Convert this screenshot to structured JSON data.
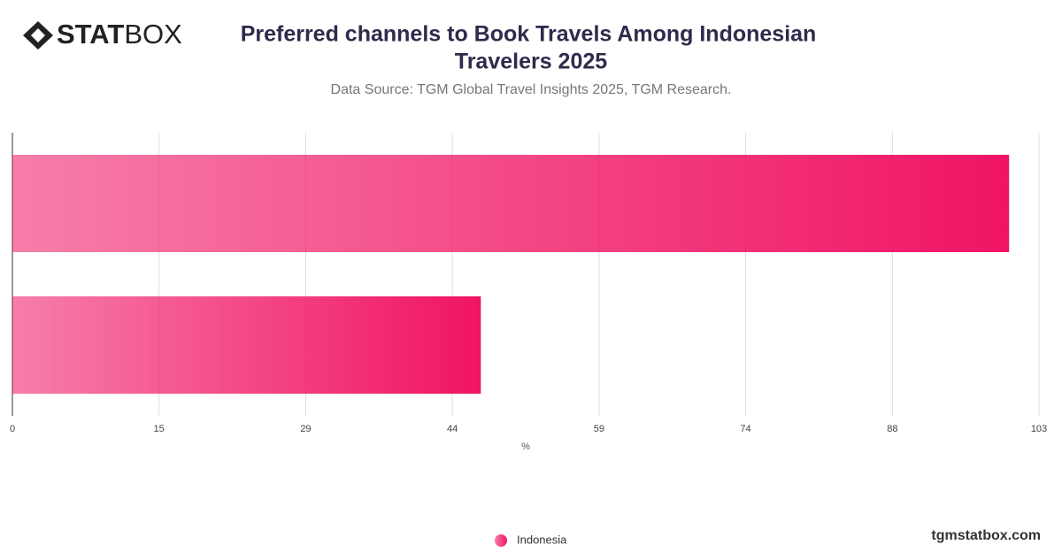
{
  "logo": {
    "bold": "STAT",
    "regular": "BOX"
  },
  "footer": "tgmstatbox.com",
  "chart_data": {
    "type": "hbar",
    "title": [
      "Preferred channels to Book Travels Among Indonesian",
      "Travelers 2025"
    ],
    "subtitle": "Data Source: TGM Global Travel Insights 2025, TGM Research.",
    "x_label": "%",
    "categories": [
      null,
      null
    ],
    "series": [
      {
        "name": "Indonesia",
        "color": "#f01464",
        "values": [
          100,
          47
        ]
      }
    ],
    "xlim": [
      0,
      103
    ],
    "xticks": [
      0,
      {
        "value": 14.71,
        "label": "15"
      },
      {
        "value": 29.43,
        "label": "29"
      },
      {
        "value": 44.14,
        "label": "44"
      },
      {
        "value": 58.86,
        "label": "59"
      },
      {
        "value": 73.57,
        "label": "74"
      },
      {
        "value": 88.29,
        "label": "88"
      },
      103
    ],
    "grid": true,
    "legend": "bottom"
  }
}
